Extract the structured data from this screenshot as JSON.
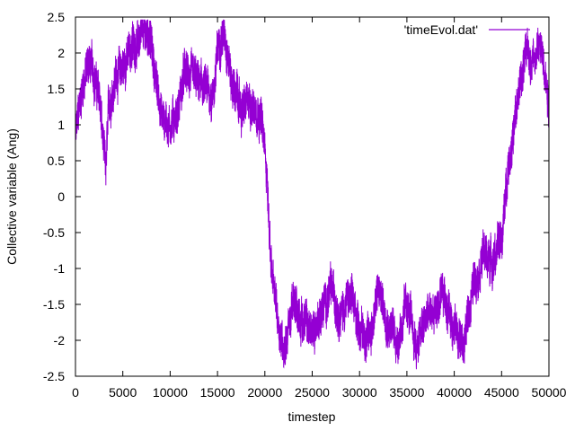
{
  "chart_data": {
    "type": "line",
    "xlabel": "timestep",
    "ylabel": "Collective variable (Ang)",
    "xlim": [
      0,
      50000
    ],
    "ylim": [
      -2.5,
      2.5
    ],
    "x_ticks": [
      "0",
      "5000",
      "10000",
      "15000",
      "20000",
      "25000",
      "30000",
      "35000",
      "40000",
      "45000",
      "50000"
    ],
    "y_ticks": [
      "2.5",
      "2",
      "1.5",
      "1",
      "0.5",
      "0",
      "-0.5",
      "-1",
      "-1.5",
      "-2",
      "-2.5"
    ],
    "legend_position": "top-right",
    "grid": false,
    "series": [
      {
        "name": "'timeEvol.dat'",
        "color": "#9400d3",
        "noise_amplitude": 0.32,
        "anchors": [
          [
            0,
            0.8
          ],
          [
            700,
            1.5
          ],
          [
            1400,
            1.9
          ],
          [
            2000,
            1.7
          ],
          [
            2600,
            1.3
          ],
          [
            3000,
            0.6
          ],
          [
            3200,
            0.3
          ],
          [
            3500,
            1.2
          ],
          [
            4200,
            1.7
          ],
          [
            5000,
            1.8
          ],
          [
            6000,
            2.1
          ],
          [
            7000,
            2.2
          ],
          [
            7800,
            2.3
          ],
          [
            8500,
            1.6
          ],
          [
            9200,
            1.1
          ],
          [
            10000,
            1.0
          ],
          [
            10800,
            1.2
          ],
          [
            11500,
            1.7
          ],
          [
            12500,
            1.6
          ],
          [
            13500,
            1.5
          ],
          [
            14500,
            1.4
          ],
          [
            15200,
            2.2
          ],
          [
            15800,
            2.3
          ],
          [
            16500,
            1.6
          ],
          [
            17500,
            1.2
          ],
          [
            18500,
            1.3
          ],
          [
            19500,
            1.2
          ],
          [
            20200,
            0.4
          ],
          [
            20500,
            -0.6
          ],
          [
            20900,
            -1.3
          ],
          [
            21500,
            -1.8
          ],
          [
            22000,
            -2.1
          ],
          [
            23000,
            -1.5
          ],
          [
            24000,
            -1.7
          ],
          [
            25000,
            -1.9
          ],
          [
            26000,
            -1.6
          ],
          [
            27000,
            -1.3
          ],
          [
            28000,
            -1.6
          ],
          [
            29000,
            -1.4
          ],
          [
            30000,
            -1.8
          ],
          [
            31000,
            -2.0
          ],
          [
            32000,
            -1.3
          ],
          [
            33000,
            -1.7
          ],
          [
            34000,
            -2.0
          ],
          [
            35000,
            -1.5
          ],
          [
            36000,
            -2.1
          ],
          [
            37000,
            -1.7
          ],
          [
            38000,
            -1.6
          ],
          [
            39000,
            -1.4
          ],
          [
            40000,
            -1.8
          ],
          [
            41000,
            -2.1
          ],
          [
            42000,
            -1.2
          ],
          [
            43000,
            -0.8
          ],
          [
            44000,
            -0.9
          ],
          [
            45000,
            -0.6
          ],
          [
            45300,
            -0.2
          ],
          [
            45700,
            0.5
          ],
          [
            46300,
            0.9
          ],
          [
            47000,
            1.6
          ],
          [
            47500,
            2.0
          ],
          [
            48000,
            1.9
          ],
          [
            49000,
            2.1
          ],
          [
            49600,
            1.8
          ],
          [
            50000,
            1.3
          ]
        ]
      }
    ]
  }
}
